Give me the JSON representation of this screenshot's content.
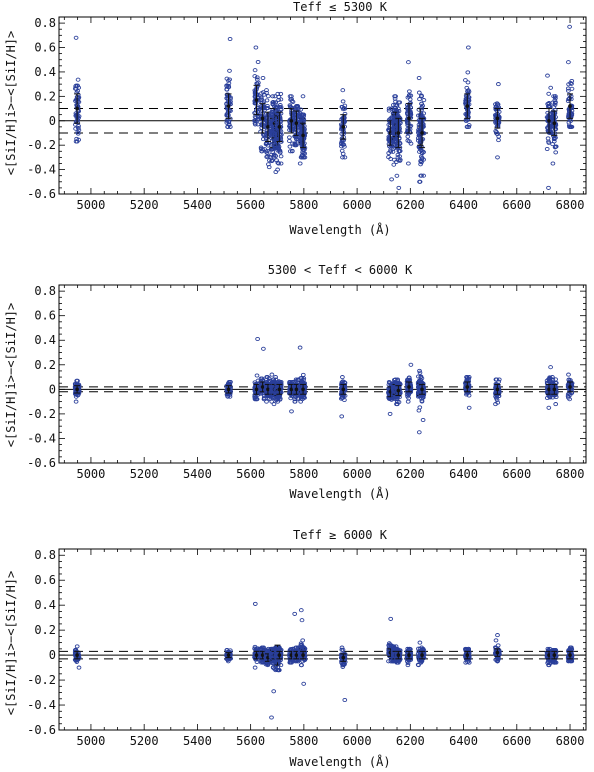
{
  "chart_data": [
    {
      "type": "scatter",
      "title": "Teff ≤ 5300 K",
      "xlabel": "Wavelength (Å)",
      "ylabel": "<[SiI/H]i>−<[SiI/H]>",
      "xlim": [
        4880,
        6860
      ],
      "ylim": [
        -0.6,
        0.85
      ],
      "xticks": [
        5000,
        5200,
        5400,
        5600,
        5800,
        6000,
        6200,
        6400,
        6600,
        6800
      ],
      "yticks": [
        -0.6,
        -0.4,
        -0.2,
        0,
        0.2,
        0.4,
        0.6,
        0.8
      ],
      "xtick_labels": [
        "5000",
        "5200",
        "5400",
        "5600",
        "5800",
        "6000",
        "6200",
        "6400",
        "6600",
        "6800"
      ],
      "ytick_labels": [
        "-0.6",
        "-0.4",
        "-0.2",
        "0",
        "0.2",
        "0.4",
        "0.6",
        "0.8"
      ],
      "reference_lines": [
        -0.1,
        0,
        0.1
      ],
      "lines": [
        {
          "x": 4948,
          "mean": 0.1,
          "sd": 0.12,
          "min": -0.17,
          "max": 0.68
        },
        {
          "x": 5517,
          "mean": 0.12,
          "sd": 0.1,
          "min": -0.05,
          "max": 0.67
        },
        {
          "x": 5622,
          "mean": 0.17,
          "sd": 0.12,
          "min": -0.03,
          "max": 0.6
        },
        {
          "x": 5645,
          "mean": 0.02,
          "sd": 0.12,
          "min": -0.25,
          "max": 0.35
        },
        {
          "x": 5665,
          "mean": -0.05,
          "sd": 0.12,
          "min": -0.38,
          "max": 0.25
        },
        {
          "x": 5684,
          "mean": -0.1,
          "sd": 0.12,
          "min": -0.33,
          "max": 0.2
        },
        {
          "x": 5690,
          "mean": -0.02,
          "sd": 0.12,
          "min": -0.3,
          "max": 0.15
        },
        {
          "x": 5701,
          "mean": -0.08,
          "sd": 0.12,
          "min": -0.42,
          "max": 0.17
        },
        {
          "x": 5708,
          "mean": -0.05,
          "sd": 0.12,
          "min": -0.35,
          "max": 0.22
        },
        {
          "x": 5753,
          "mean": 0.0,
          "sd": 0.1,
          "min": -0.25,
          "max": 0.2
        },
        {
          "x": 5772,
          "mean": -0.02,
          "sd": 0.1,
          "min": -0.2,
          "max": 0.12
        },
        {
          "x": 5793,
          "mean": -0.08,
          "sd": 0.1,
          "min": -0.35,
          "max": 0.2
        },
        {
          "x": 5797,
          "mean": -0.12,
          "sd": 0.1,
          "min": -0.3,
          "max": 0.05
        },
        {
          "x": 5948,
          "mean": -0.05,
          "sd": 0.1,
          "min": -0.3,
          "max": 0.25
        },
        {
          "x": 6125,
          "mean": -0.1,
          "sd": 0.1,
          "min": -0.48,
          "max": 0.1
        },
        {
          "x": 6142,
          "mean": -0.05,
          "sd": 0.1,
          "min": -0.36,
          "max": 0.2
        },
        {
          "x": 6145,
          "mean": -0.03,
          "sd": 0.1,
          "min": -0.32,
          "max": 0.18
        },
        {
          "x": 6155,
          "mean": -0.1,
          "sd": 0.12,
          "min": -0.55,
          "max": 0.15
        },
        {
          "x": 6195,
          "mean": 0.02,
          "sd": 0.12,
          "min": -0.35,
          "max": 0.48
        },
        {
          "x": 6237,
          "mean": -0.05,
          "sd": 0.15,
          "min": -0.5,
          "max": 0.35
        },
        {
          "x": 6244,
          "mean": -0.1,
          "sd": 0.12,
          "min": -0.45,
          "max": 0.2
        },
        {
          "x": 6414,
          "mean": 0.12,
          "sd": 0.1,
          "min": -0.05,
          "max": 0.6
        },
        {
          "x": 6527,
          "mean": 0.02,
          "sd": 0.08,
          "min": -0.3,
          "max": 0.3
        },
        {
          "x": 6721,
          "mean": 0.0,
          "sd": 0.1,
          "min": -0.55,
          "max": 0.37
        },
        {
          "x": 6741,
          "mean": -0.02,
          "sd": 0.1,
          "min": -0.35,
          "max": 0.2
        },
        {
          "x": 6800,
          "mean": 0.12,
          "sd": 0.1,
          "min": -0.05,
          "max": 0.77
        }
      ]
    },
    {
      "type": "scatter",
      "title": "5300 < Teff < 6000 K",
      "xlabel": "Wavelength (Å)",
      "ylabel": "<[SiI/H]i>−<[SiI/H]>",
      "xlim": [
        4880,
        6860
      ],
      "ylim": [
        -0.6,
        0.85
      ],
      "xticks": [
        5000,
        5200,
        5400,
        5600,
        5800,
        6000,
        6200,
        6400,
        6600,
        6800
      ],
      "yticks": [
        -0.6,
        -0.4,
        -0.2,
        0,
        0.2,
        0.4,
        0.6,
        0.8
      ],
      "xtick_labels": [
        "5000",
        "5200",
        "5400",
        "5600",
        "5800",
        "6000",
        "6200",
        "6400",
        "6600",
        "6800"
      ],
      "ytick_labels": [
        "-0.6",
        "-0.4",
        "-0.2",
        "0",
        "0.2",
        "0.4",
        "0.6",
        "0.8"
      ],
      "reference_lines": [
        -0.02,
        0,
        0.02
      ],
      "lines": [
        {
          "x": 4948,
          "mean": 0.0,
          "sd": 0.03,
          "min": -0.1,
          "max": 0.07
        },
        {
          "x": 5517,
          "mean": 0.0,
          "sd": 0.03,
          "min": -0.06,
          "max": 0.06
        },
        {
          "x": 5622,
          "mean": 0.0,
          "sd": 0.04,
          "min": -0.08,
          "max": 0.41
        },
        {
          "x": 5645,
          "mean": 0.02,
          "sd": 0.04,
          "min": -0.08,
          "max": 0.33
        },
        {
          "x": 5665,
          "mean": 0.0,
          "sd": 0.04,
          "min": -0.1,
          "max": 0.1
        },
        {
          "x": 5684,
          "mean": 0.0,
          "sd": 0.04,
          "min": -0.1,
          "max": 0.12
        },
        {
          "x": 5690,
          "mean": 0.0,
          "sd": 0.04,
          "min": -0.12,
          "max": 0.08
        },
        {
          "x": 5701,
          "mean": -0.01,
          "sd": 0.04,
          "min": -0.08,
          "max": 0.1
        },
        {
          "x": 5708,
          "mean": 0.0,
          "sd": 0.04,
          "min": -0.1,
          "max": 0.06
        },
        {
          "x": 5753,
          "mean": 0.0,
          "sd": 0.04,
          "min": -0.18,
          "max": 0.06
        },
        {
          "x": 5772,
          "mean": 0.0,
          "sd": 0.04,
          "min": -0.1,
          "max": 0.08
        },
        {
          "x": 5793,
          "mean": 0.02,
          "sd": 0.04,
          "min": -0.1,
          "max": 0.34
        },
        {
          "x": 5797,
          "mean": 0.0,
          "sd": 0.04,
          "min": -0.08,
          "max": 0.05
        },
        {
          "x": 5948,
          "mean": 0.0,
          "sd": 0.04,
          "min": -0.22,
          "max": 0.1
        },
        {
          "x": 6125,
          "mean": -0.02,
          "sd": 0.04,
          "min": -0.2,
          "max": 0.06
        },
        {
          "x": 6142,
          "mean": 0.0,
          "sd": 0.04,
          "min": -0.08,
          "max": 0.05
        },
        {
          "x": 6145,
          "mean": 0.0,
          "sd": 0.04,
          "min": -0.06,
          "max": 0.08
        },
        {
          "x": 6155,
          "mean": -0.01,
          "sd": 0.04,
          "min": -0.12,
          "max": 0.05
        },
        {
          "x": 6195,
          "mean": 0.02,
          "sd": 0.04,
          "min": -0.1,
          "max": 0.2
        },
        {
          "x": 6237,
          "mean": 0.0,
          "sd": 0.05,
          "min": -0.35,
          "max": 0.15
        },
        {
          "x": 6244,
          "mean": 0.0,
          "sd": 0.04,
          "min": -0.25,
          "max": 0.1
        },
        {
          "x": 6414,
          "mean": 0.02,
          "sd": 0.04,
          "min": -0.15,
          "max": 0.1
        },
        {
          "x": 6527,
          "mean": 0.0,
          "sd": 0.04,
          "min": -0.12,
          "max": 0.08
        },
        {
          "x": 6721,
          "mean": 0.0,
          "sd": 0.04,
          "min": -0.15,
          "max": 0.18
        },
        {
          "x": 6741,
          "mean": 0.0,
          "sd": 0.04,
          "min": -0.12,
          "max": 0.1
        },
        {
          "x": 6800,
          "mean": 0.02,
          "sd": 0.04,
          "min": -0.08,
          "max": 0.12
        }
      ]
    },
    {
      "type": "scatter",
      "title": "Teff ≥ 6000 K",
      "xlabel": "Wavelength (Å)",
      "ylabel": "<[SiI/H]i>−<[SiI/H]>",
      "xlim": [
        4880,
        6860
      ],
      "ylim": [
        -0.6,
        0.85
      ],
      "xticks": [
        5000,
        5200,
        5400,
        5600,
        5800,
        6000,
        6200,
        6400,
        6600,
        6800
      ],
      "yticks": [
        -0.6,
        -0.4,
        -0.2,
        0,
        0.2,
        0.4,
        0.6,
        0.8
      ],
      "xtick_labels": [
        "5000",
        "5200",
        "5400",
        "5600",
        "5800",
        "6000",
        "6200",
        "6400",
        "6600",
        "6800"
      ],
      "ytick_labels": [
        "-0.6",
        "-0.4",
        "-0.2",
        "0",
        "0.2",
        "0.4",
        "0.6",
        "0.8"
      ],
      "reference_lines": [
        -0.03,
        0,
        0.03
      ],
      "lines": [
        {
          "x": 4948,
          "mean": 0.0,
          "sd": 0.03,
          "min": -0.1,
          "max": 0.07
        },
        {
          "x": 5517,
          "mean": 0.0,
          "sd": 0.02,
          "min": -0.05,
          "max": 0.04
        },
        {
          "x": 5622,
          "mean": 0.0,
          "sd": 0.03,
          "min": -0.1,
          "max": 0.41
        },
        {
          "x": 5645,
          "mean": 0.0,
          "sd": 0.03,
          "min": -0.06,
          "max": 0.06
        },
        {
          "x": 5665,
          "mean": -0.02,
          "sd": 0.03,
          "min": -0.08,
          "max": 0.05
        },
        {
          "x": 5684,
          "mean": 0.0,
          "sd": 0.04,
          "min": -0.5,
          "max": 0.05
        },
        {
          "x": 5690,
          "mean": 0.0,
          "sd": 0.03,
          "min": -0.29,
          "max": 0.05
        },
        {
          "x": 5701,
          "mean": 0.0,
          "sd": 0.08,
          "min": -0.12,
          "max": 0.06
        },
        {
          "x": 5708,
          "mean": 0.0,
          "sd": 0.03,
          "min": -0.08,
          "max": 0.05
        },
        {
          "x": 5753,
          "mean": 0.0,
          "sd": 0.03,
          "min": -0.06,
          "max": 0.05
        },
        {
          "x": 5772,
          "mean": 0.0,
          "sd": 0.03,
          "min": -0.05,
          "max": 0.33
        },
        {
          "x": 5793,
          "mean": 0.02,
          "sd": 0.03,
          "min": -0.08,
          "max": 0.36
        },
        {
          "x": 5797,
          "mean": 0.0,
          "sd": 0.03,
          "min": -0.23,
          "max": 0.28
        },
        {
          "x": 5948,
          "mean": -0.02,
          "sd": 0.03,
          "min": -0.36,
          "max": 0.06
        },
        {
          "x": 6125,
          "mean": 0.02,
          "sd": 0.03,
          "min": -0.05,
          "max": 0.29
        },
        {
          "x": 6142,
          "mean": 0.0,
          "sd": 0.03,
          "min": -0.06,
          "max": 0.07
        },
        {
          "x": 6145,
          "mean": 0.0,
          "sd": 0.03,
          "min": -0.05,
          "max": 0.05
        },
        {
          "x": 6155,
          "mean": 0.0,
          "sd": 0.03,
          "min": -0.06,
          "max": 0.05
        },
        {
          "x": 6195,
          "mean": 0.0,
          "sd": 0.03,
          "min": -0.08,
          "max": 0.05
        },
        {
          "x": 6237,
          "mean": 0.0,
          "sd": 0.03,
          "min": -0.08,
          "max": 0.1
        },
        {
          "x": 6244,
          "mean": 0.0,
          "sd": 0.03,
          "min": -0.06,
          "max": 0.05
        },
        {
          "x": 6414,
          "mean": 0.0,
          "sd": 0.03,
          "min": -0.06,
          "max": 0.05
        },
        {
          "x": 6527,
          "mean": 0.02,
          "sd": 0.03,
          "min": -0.05,
          "max": 0.16
        },
        {
          "x": 6721,
          "mean": 0.0,
          "sd": 0.03,
          "min": -0.08,
          "max": 0.05
        },
        {
          "x": 6741,
          "mean": 0.0,
          "sd": 0.03,
          "min": -0.06,
          "max": 0.04
        },
        {
          "x": 6800,
          "mean": 0.0,
          "sd": 0.03,
          "min": -0.05,
          "max": 0.06
        }
      ]
    }
  ],
  "colors": {
    "points": "#2a3f9a",
    "lines": "#000000",
    "background": "#ffffff"
  }
}
